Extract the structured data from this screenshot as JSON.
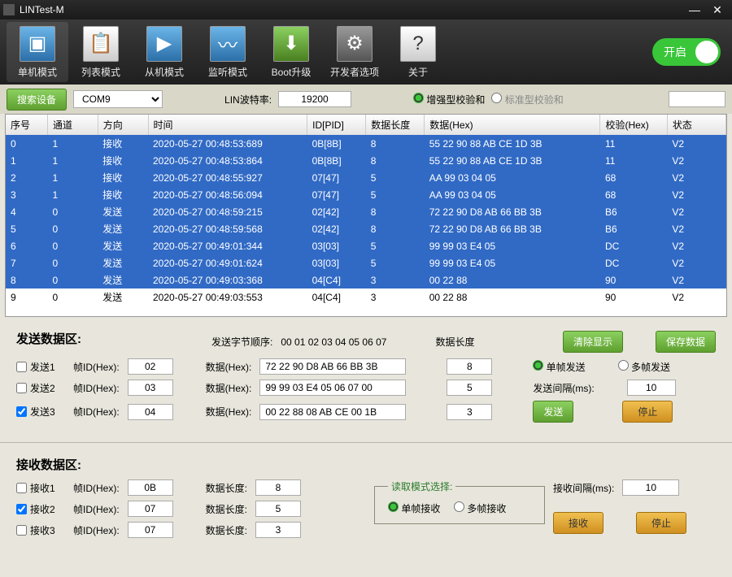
{
  "window": {
    "title": "LINTest-M"
  },
  "toolbar": {
    "items": [
      {
        "label": "单机模式",
        "icon": "▣",
        "style": "blue",
        "active": true
      },
      {
        "label": "列表模式",
        "icon": "📋",
        "style": "white"
      },
      {
        "label": "从机模式",
        "icon": "▶",
        "style": "blue"
      },
      {
        "label": "监听模式",
        "icon": "〰",
        "style": "blue"
      },
      {
        "label": "Boot升级",
        "icon": "⬇",
        "style": "green"
      },
      {
        "label": "开发者选项",
        "icon": "⚙",
        "style": "grey"
      },
      {
        "label": "关于",
        "icon": "?",
        "style": "white"
      }
    ],
    "switch_label": "开启"
  },
  "controlbar": {
    "search_btn": "搜索设备",
    "com_value": "COM9",
    "baud_label": "LIN波特率:",
    "baud_value": "19200",
    "enhanced": "增强型校验和",
    "standard": "标准型校验和"
  },
  "table": {
    "columns": [
      "序号",
      "通道",
      "方向",
      "时间",
      "ID[PID]",
      "数据长度",
      "数据(Hex)",
      "校验(Hex)",
      "状态"
    ],
    "rows": [
      [
        "0",
        "1",
        "接收",
        "2020-05-27 00:48:53:689",
        "0B[8B]",
        "8",
        "55 22 90 88 AB CE 1D 3B",
        "11",
        "V2"
      ],
      [
        "1",
        "1",
        "接收",
        "2020-05-27 00:48:53:864",
        "0B[8B]",
        "8",
        "55 22 90 88 AB CE 1D 3B",
        "11",
        "V2"
      ],
      [
        "2",
        "1",
        "接收",
        "2020-05-27 00:48:55:927",
        "07[47]",
        "5",
        "AA 99 03 04 05",
        "68",
        "V2"
      ],
      [
        "3",
        "1",
        "接收",
        "2020-05-27 00:48:56:094",
        "07[47]",
        "5",
        "AA 99 03 04 05",
        "68",
        "V2"
      ],
      [
        "4",
        "0",
        "发送",
        "2020-05-27 00:48:59:215",
        "02[42]",
        "8",
        "72 22 90 D8 AB 66 BB 3B",
        "B6",
        "V2"
      ],
      [
        "5",
        "0",
        "发送",
        "2020-05-27 00:48:59:568",
        "02[42]",
        "8",
        "72 22 90 D8 AB 66 BB 3B",
        "B6",
        "V2"
      ],
      [
        "6",
        "0",
        "发送",
        "2020-05-27 00:49:01:344",
        "03[03]",
        "5",
        "99 99 03 E4 05",
        "DC",
        "V2"
      ],
      [
        "7",
        "0",
        "发送",
        "2020-05-27 00:49:01:624",
        "03[03]",
        "5",
        "99 99 03 E4 05",
        "DC",
        "V2"
      ],
      [
        "8",
        "0",
        "发送",
        "2020-05-27 00:49:03:368",
        "04[C4]",
        "3",
        "00 22 88",
        "90",
        "V2"
      ],
      [
        "9",
        "0",
        "发送",
        "2020-05-27 00:49:03:553",
        "04[C4]",
        "3",
        "00 22 88",
        "90",
        "V2"
      ]
    ]
  },
  "send": {
    "title": "发送数据区:",
    "byteorder_label": "发送字节顺序:",
    "byteorder_value": "00 01 02 03 04 05 06 07",
    "datalen_label": "数据长度",
    "clear_btn": "清除显示",
    "save_btn": "保存数据",
    "rows": [
      {
        "chk": "发送1",
        "checked": false,
        "fid_label": "帧ID(Hex):",
        "fid": "02",
        "data_label": "数据(Hex):",
        "data": "72 22 90 D8 AB 66 BB 3B",
        "len": "8"
      },
      {
        "chk": "发送2",
        "checked": false,
        "fid_label": "帧ID(Hex):",
        "fid": "03",
        "data_label": "数据(Hex):",
        "data": "99 99 03 E4 05 06 07 00",
        "len": "5"
      },
      {
        "chk": "发送3",
        "checked": true,
        "fid_label": "帧ID(Hex):",
        "fid": "04",
        "data_label": "数据(Hex):",
        "data": "00 22 88 08 AB CE 00 1B",
        "len": "3"
      }
    ],
    "single_radio": "单帧发送",
    "multi_radio": "多帧发送",
    "interval_label": "发送间隔(ms):",
    "interval_value": "10",
    "send_btn": "发送",
    "stop_btn": "停止"
  },
  "recv": {
    "title": "接收数据区:",
    "rows": [
      {
        "chk": "接收1",
        "checked": false,
        "fid_label": "帧ID(Hex):",
        "fid": "0B",
        "len_label": "数据长度:",
        "len": "8"
      },
      {
        "chk": "接收2",
        "checked": true,
        "fid_label": "帧ID(Hex):",
        "fid": "07",
        "len_label": "数据长度:",
        "len": "5"
      },
      {
        "chk": "接收3",
        "checked": false,
        "fid_label": "帧ID(Hex):",
        "fid": "07",
        "len_label": "数据长度:",
        "len": "3"
      }
    ],
    "mode_legend": "读取模式选择:",
    "single_radio": "单帧接收",
    "multi_radio": "多帧接收",
    "interval_label": "接收间隔(ms):",
    "interval_value": "10",
    "recv_btn": "接收",
    "stop_btn": "停止"
  },
  "colors": {
    "row_selected": "#316ac5",
    "accent_green": "#39c639",
    "btn_green": "#5fa030",
    "btn_orange": "#d09020"
  }
}
